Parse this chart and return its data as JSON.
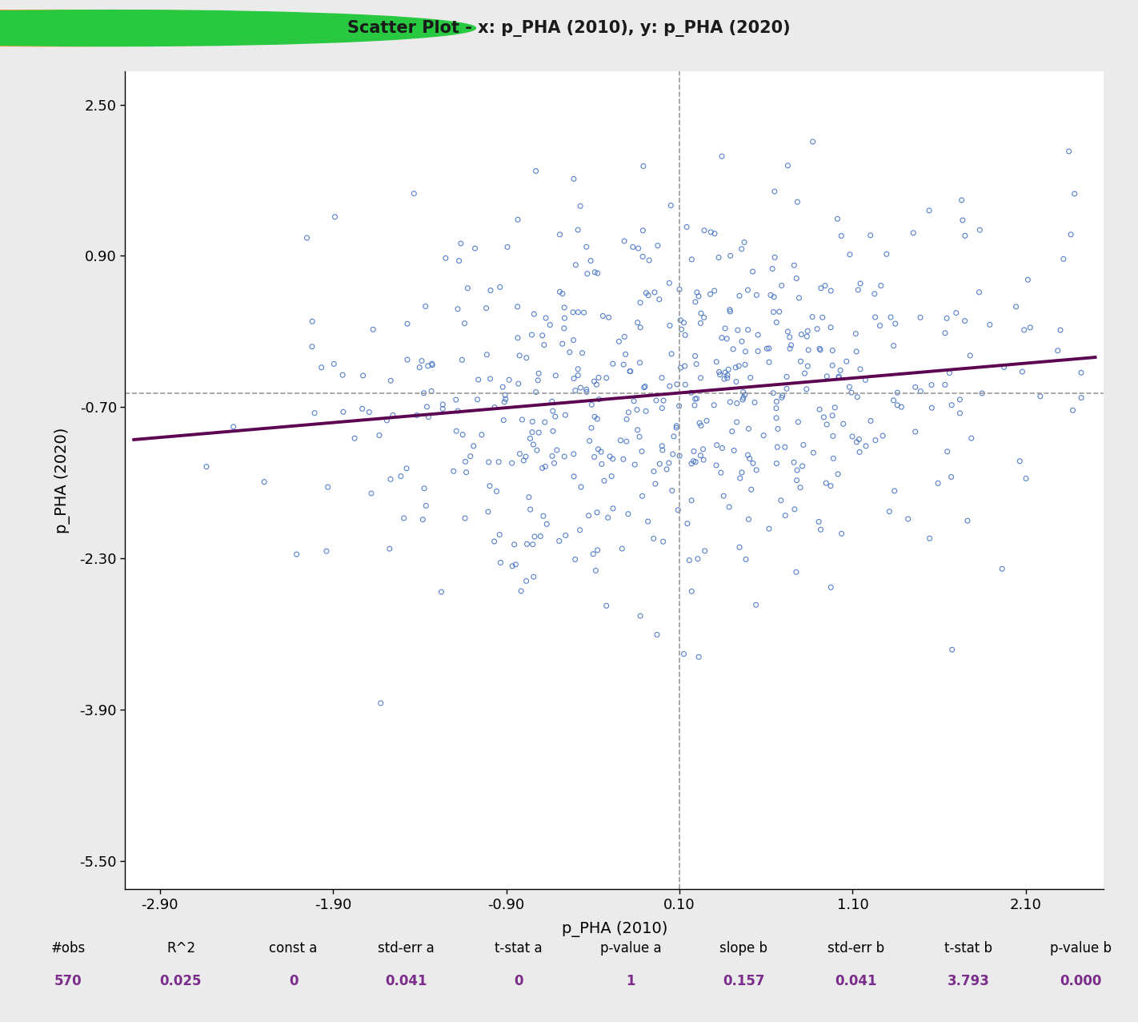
{
  "title": "Scatter Plot - x: p_PHA (2010), y: p_PHA (2020)",
  "xlabel": "p_PHA (2010)",
  "ylabel": "p_PHA (2020)",
  "xlim": [
    -3.1,
    2.55
  ],
  "ylim": [
    -5.8,
    2.85
  ],
  "xticks": [
    -2.9,
    -1.9,
    -0.9,
    0.1,
    1.1,
    2.1
  ],
  "yticks": [
    2.5,
    0.9,
    -0.7,
    -2.3,
    -3.9,
    -5.5
  ],
  "xticklabels": [
    "-2.90",
    "-1.90",
    "-0.90",
    "0.10",
    "1.10",
    "2.10"
  ],
  "yticklabels": [
    "2.50",
    "0.90",
    "-0.70",
    "-2.30",
    "-3.90",
    "-5.50"
  ],
  "mean_x": 0.1,
  "mean_y": -0.55,
  "n_obs": 570,
  "r2": 0.025,
  "const_a": 0,
  "stderr_a": 0.041,
  "tstat_a": 0,
  "pvalue_a": 1,
  "slope_b": 0.157,
  "stderr_b": 0.041,
  "tstat_b": 3.793,
  "pvalue_b": 0.0,
  "scatter_color": "#4472C4",
  "line_color": "#5C0050",
  "dash_color": "#999999",
  "bg_color": "#EBEBEB",
  "plot_bg": "#FFFFFF",
  "titlebar_color": "#D6D6D6",
  "stats_label_color": "#000000",
  "stats_value_color": "#7B2D8B",
  "seed": 42
}
